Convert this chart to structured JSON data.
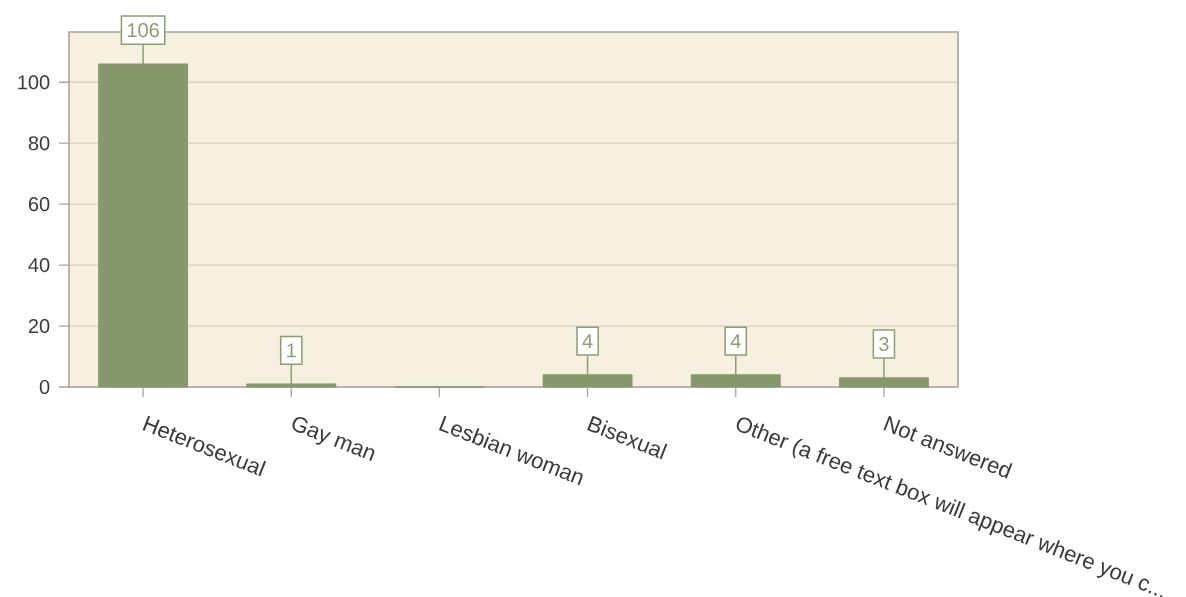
{
  "chart_data": {
    "type": "bar",
    "categories": [
      "Heterosexual",
      "Gay man",
      "Lesbian woman",
      "Bisexual",
      "Other (a free text box will appear where you c...",
      "Not answered"
    ],
    "values": [
      106,
      1,
      0,
      4,
      4,
      3
    ],
    "color": "#87996c",
    "value_labels": [
      "106",
      "1",
      null,
      "4",
      "4",
      "3"
    ],
    "ylim": [
      0,
      116.5
    ],
    "yticks": [
      0,
      20,
      40,
      60,
      80,
      100
    ],
    "grid": "y"
  }
}
